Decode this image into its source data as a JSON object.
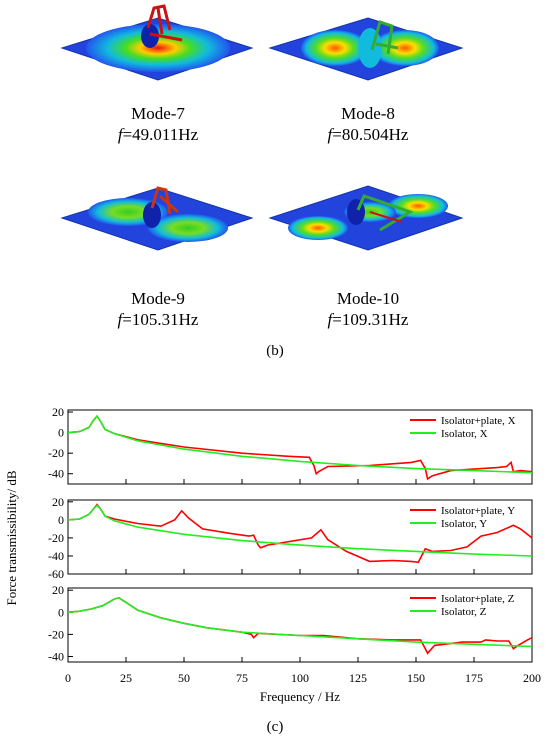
{
  "modes": [
    {
      "name": "Mode-7",
      "f_symbol": "f",
      "f_value": "=49.011Hz"
    },
    {
      "name": "Mode-8",
      "f_symbol": "f",
      "f_value": "=80.504Hz"
    },
    {
      "name": "Mode-9",
      "f_symbol": "f",
      "f_value": "=105.31Hz"
    },
    {
      "name": "Mode-10",
      "f_symbol": "f",
      "f_value": "=109.31Hz"
    }
  ],
  "caption_b": "(b)",
  "caption_c": "(c)",
  "colors": {
    "plate_red": "#ff0000",
    "isolator_green": "#22ee22"
  },
  "chart_data": {
    "type": "line",
    "ylabel": "Force transmissibility/ dB",
    "xlabel": "Frequency / Hz",
    "xlim": [
      0,
      200
    ],
    "xticks": [
      "0",
      "25",
      "50",
      "75",
      "100",
      "125",
      "150",
      "175",
      "200"
    ],
    "panels": [
      {
        "ylim": [
          -50,
          22
        ],
        "yticks": [
          "20",
          "0",
          "-20",
          "-40"
        ],
        "series": [
          {
            "name": "Isolator+plate, X",
            "color": "#ff0000",
            "points": [
              [
                0,
                0
              ],
              [
                5,
                1
              ],
              [
                9,
                5
              ],
              [
                11,
                12
              ],
              [
                12.5,
                16
              ],
              [
                14,
                11
              ],
              [
                16,
                3
              ],
              [
                20,
                -1
              ],
              [
                30,
                -7
              ],
              [
                50,
                -14
              ],
              [
                75,
                -20
              ],
              [
                95,
                -23
              ],
              [
                104,
                -24
              ],
              [
                106,
                -32
              ],
              [
                107,
                -40
              ],
              [
                108,
                -38
              ],
              [
                112,
                -33
              ],
              [
                130,
                -32
              ],
              [
                148,
                -29
              ],
              [
                152,
                -27
              ],
              [
                154,
                -35
              ],
              [
                155,
                -45
              ],
              [
                157,
                -42
              ],
              [
                165,
                -37
              ],
              [
                185,
                -34
              ],
              [
                189,
                -33
              ],
              [
                191,
                -29
              ],
              [
                192,
                -38
              ],
              [
                195,
                -37
              ],
              [
                200,
                -38
              ]
            ]
          },
          {
            "name": "Isolator, X",
            "color": "#22ee22",
            "points": [
              [
                0,
                0
              ],
              [
                5,
                1
              ],
              [
                9,
                5
              ],
              [
                11,
                12
              ],
              [
                12.5,
                16
              ],
              [
                14,
                11
              ],
              [
                16,
                3
              ],
              [
                20,
                -1
              ],
              [
                30,
                -8
              ],
              [
                50,
                -16
              ],
              [
                75,
                -23
              ],
              [
                100,
                -28
              ],
              [
                125,
                -32
              ],
              [
                150,
                -35
              ],
              [
                175,
                -37
              ],
              [
                200,
                -39
              ]
            ]
          }
        ]
      },
      {
        "ylim": [
          -60,
          22
        ],
        "yticks": [
          "20",
          "0",
          "-20",
          "-40",
          "-60"
        ],
        "series": [
          {
            "name": "Isolator+plate, Y",
            "color": "#ff0000",
            "points": [
              [
                0,
                0
              ],
              [
                5,
                1
              ],
              [
                9,
                6
              ],
              [
                11,
                12
              ],
              [
                12.5,
                17
              ],
              [
                14,
                12
              ],
              [
                16,
                4
              ],
              [
                20,
                1
              ],
              [
                30,
                -4
              ],
              [
                40,
                -7
              ],
              [
                46,
                0
              ],
              [
                49,
                10
              ],
              [
                52,
                2
              ],
              [
                58,
                -10
              ],
              [
                70,
                -15
              ],
              [
                78,
                -18
              ],
              [
                80,
                -17
              ],
              [
                82,
                -28
              ],
              [
                83,
                -31
              ],
              [
                86,
                -28
              ],
              [
                105,
                -20
              ],
              [
                109,
                -11
              ],
              [
                112,
                -22
              ],
              [
                120,
                -35
              ],
              [
                130,
                -46
              ],
              [
                140,
                -45
              ],
              [
                148,
                -46
              ],
              [
                151,
                -47
              ],
              [
                154,
                -32
              ],
              [
                157,
                -35
              ],
              [
                165,
                -34
              ],
              [
                172,
                -30
              ],
              [
                178,
                -18
              ],
              [
                185,
                -14
              ],
              [
                192,
                -6
              ],
              [
                195,
                -10
              ],
              [
                200,
                -20
              ]
            ]
          },
          {
            "name": "Isolator, Y",
            "color": "#22ee22",
            "points": [
              [
                0,
                0
              ],
              [
                5,
                1
              ],
              [
                9,
                6
              ],
              [
                11,
                12
              ],
              [
                12.5,
                16
              ],
              [
                14,
                12
              ],
              [
                16,
                4
              ],
              [
                20,
                -1
              ],
              [
                30,
                -8
              ],
              [
                50,
                -16
              ],
              [
                75,
                -23
              ],
              [
                100,
                -28
              ],
              [
                125,
                -32
              ],
              [
                150,
                -35
              ],
              [
                175,
                -38
              ],
              [
                200,
                -40
              ]
            ]
          }
        ]
      },
      {
        "ylim": [
          -45,
          22
        ],
        "yticks": [
          "20",
          "0",
          "-20",
          "-40"
        ],
        "series": [
          {
            "name": "Isolator+plate, Z",
            "color": "#ff0000",
            "points": [
              [
                0,
                0
              ],
              [
                5,
                1
              ],
              [
                10,
                3
              ],
              [
                15,
                6
              ],
              [
                20,
                12
              ],
              [
                22,
                13
              ],
              [
                25,
                9
              ],
              [
                30,
                2
              ],
              [
                40,
                -5
              ],
              [
                50,
                -10
              ],
              [
                60,
                -14
              ],
              [
                75,
                -18
              ],
              [
                79,
                -20
              ],
              [
                80,
                -23
              ],
              [
                82,
                -19
              ],
              [
                100,
                -21
              ],
              [
                110,
                -21
              ],
              [
                125,
                -24
              ],
              [
                140,
                -25
              ],
              [
                152,
                -25
              ],
              [
                154,
                -33
              ],
              [
                155,
                -37
              ],
              [
                158,
                -30
              ],
              [
                170,
                -27
              ],
              [
                178,
                -27
              ],
              [
                180,
                -25
              ],
              [
                185,
                -26
              ],
              [
                190,
                -26
              ],
              [
                192,
                -33
              ],
              [
                194,
                -30
              ],
              [
                198,
                -25
              ],
              [
                200,
                -23
              ]
            ]
          },
          {
            "name": "Isolator, Z",
            "color": "#22ee22",
            "points": [
              [
                0,
                0
              ],
              [
                5,
                1
              ],
              [
                10,
                3
              ],
              [
                15,
                6
              ],
              [
                20,
                12
              ],
              [
                22,
                13
              ],
              [
                25,
                9
              ],
              [
                30,
                2
              ],
              [
                40,
                -5
              ],
              [
                50,
                -10
              ],
              [
                60,
                -14
              ],
              [
                75,
                -18
              ],
              [
                100,
                -21
              ],
              [
                125,
                -24
              ],
              [
                150,
                -27
              ],
              [
                175,
                -29
              ],
              [
                200,
                -31
              ]
            ]
          }
        ]
      }
    ]
  }
}
